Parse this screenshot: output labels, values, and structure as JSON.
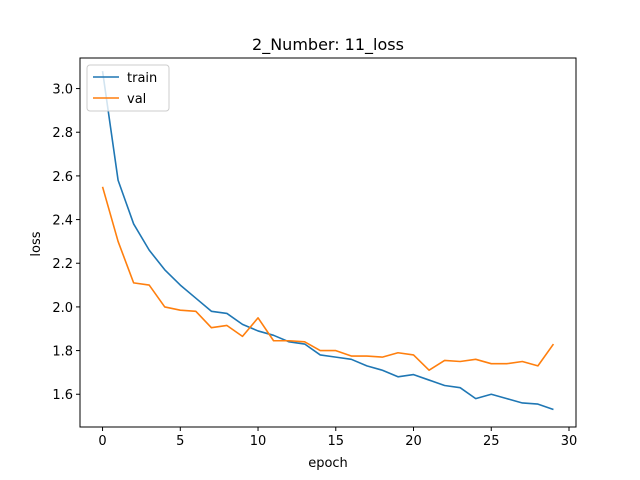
{
  "chart_data": {
    "type": "line",
    "title": "2_Number: 11_loss",
    "xlabel": "epoch",
    "ylabel": "loss",
    "xlim": [
      -1.45,
      30.45
    ],
    "ylim": [
      1.45,
      3.14
    ],
    "x_ticks": [
      0,
      5,
      10,
      15,
      20,
      25,
      30
    ],
    "y_ticks": [
      1.6,
      1.8,
      2.0,
      2.2,
      2.4,
      2.6,
      2.8,
      3.0
    ],
    "y_tick_labels": [
      "1.6",
      "1.8",
      "2.0",
      "2.2",
      "2.4",
      "2.6",
      "2.8",
      "3.0"
    ],
    "grid": false,
    "legend": "top-left",
    "x": [
      0,
      1,
      2,
      3,
      4,
      5,
      6,
      7,
      8,
      9,
      10,
      11,
      12,
      13,
      14,
      15,
      16,
      17,
      18,
      19,
      20,
      21,
      22,
      23,
      24,
      25,
      26,
      27,
      28,
      29
    ],
    "series": [
      {
        "name": "train",
        "color": "#1f77b4",
        "values": [
          3.08,
          2.58,
          2.38,
          2.26,
          2.17,
          2.1,
          2.04,
          1.98,
          1.97,
          1.92,
          1.89,
          1.87,
          1.84,
          1.83,
          1.78,
          1.77,
          1.76,
          1.73,
          1.71,
          1.68,
          1.69,
          1.665,
          1.64,
          1.63,
          1.58,
          1.6,
          1.58,
          1.56,
          1.555,
          1.53
        ]
      },
      {
        "name": "val",
        "color": "#ff7f0e",
        "values": [
          2.55,
          2.3,
          2.11,
          2.1,
          2.0,
          1.985,
          1.98,
          1.905,
          1.915,
          1.865,
          1.95,
          1.845,
          1.845,
          1.84,
          1.8,
          1.8,
          1.775,
          1.775,
          1.77,
          1.79,
          1.78,
          1.71,
          1.755,
          1.75,
          1.76,
          1.74,
          1.74,
          1.75,
          1.73,
          1.83
        ]
      }
    ]
  }
}
